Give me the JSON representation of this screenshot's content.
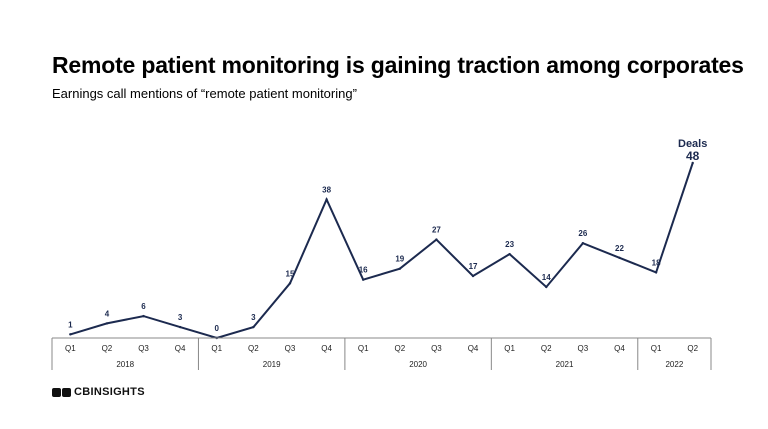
{
  "title": "Remote patient monitoring is gaining traction among corporates",
  "subtitle": "Earnings call mentions of “remote patient monitoring”",
  "brand": "CBINSIGHTS",
  "colors": {
    "line": "#1c2a4f",
    "axis": "#888888",
    "text": "#1c2a4f"
  },
  "chart_data": {
    "type": "line",
    "title": "Remote patient monitoring is gaining traction among corporates",
    "subtitle": "Earnings call mentions of “remote patient monitoring”",
    "x": [
      "Q1 2018",
      "Q2 2018",
      "Q3 2018",
      "Q4 2018",
      "Q1 2019",
      "Q2 2019",
      "Q3 2019",
      "Q4 2019",
      "Q1 2020",
      "Q2 2020",
      "Q3 2020",
      "Q4 2020",
      "Q1 2021",
      "Q2 2021",
      "Q3 2021",
      "Q4 2021",
      "Q1 2022",
      "Q2 2022"
    ],
    "quarters": [
      "Q1",
      "Q2",
      "Q3",
      "Q4",
      "Q1",
      "Q2",
      "Q3",
      "Q4",
      "Q1",
      "Q2",
      "Q3",
      "Q4",
      "Q1",
      "Q2",
      "Q3",
      "Q4",
      "Q1",
      "Q2"
    ],
    "years": [
      {
        "label": "2018",
        "count": 4
      },
      {
        "label": "2019",
        "count": 4
      },
      {
        "label": "2020",
        "count": 4
      },
      {
        "label": "2021",
        "count": 4
      },
      {
        "label": "2022",
        "count": 2
      }
    ],
    "series": [
      {
        "name": "Deals",
        "values": [
          1,
          4,
          6,
          3,
          0,
          3,
          15,
          38,
          16,
          19,
          27,
          17,
          23,
          14,
          26,
          22,
          18,
          48
        ]
      }
    ],
    "last_label": "Deals",
    "ylim": [
      0,
      48
    ],
    "grid": false,
    "legend": "none"
  }
}
